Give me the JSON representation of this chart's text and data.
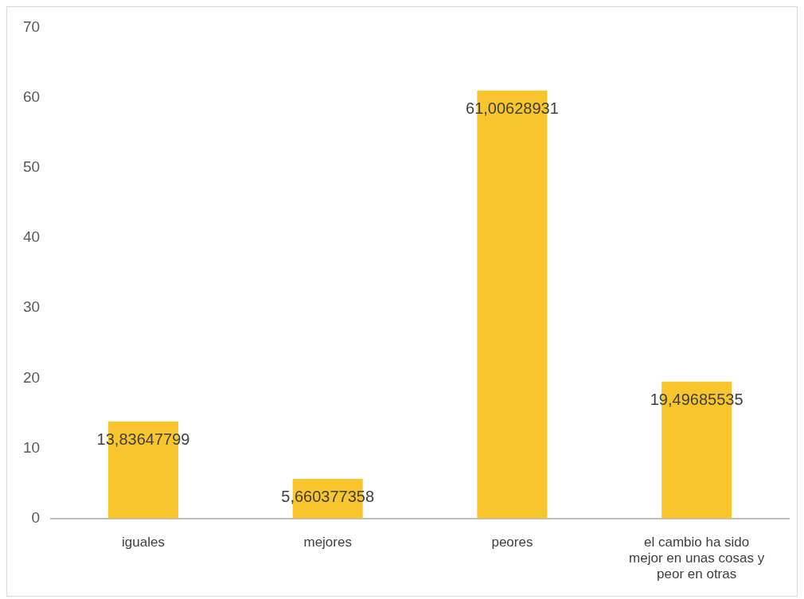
{
  "chart_data": {
    "type": "bar",
    "categories": [
      "iguales",
      "mejores",
      "peores",
      "el cambio ha sido mejor en unas cosas y peor en otras"
    ],
    "values": [
      13.83647799,
      5.660377358,
      61.00628931,
      19.49685535
    ],
    "value_labels": [
      "13,83647799",
      "5,660377358",
      "61,00628931",
      "19,49685535"
    ],
    "color": "#f8c62c",
    "ylim": [
      0,
      70
    ],
    "yticks": [
      0,
      10,
      20,
      30,
      40,
      50,
      60,
      70
    ],
    "grid": false,
    "legend": false
  }
}
